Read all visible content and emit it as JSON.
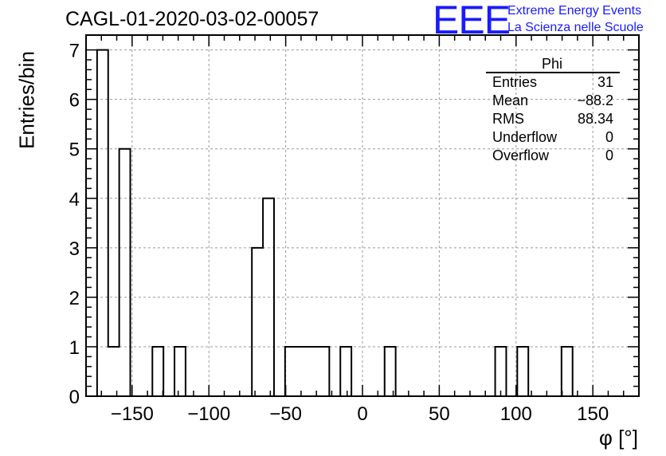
{
  "chart_data": {
    "type": "histogram",
    "title": "CAGL-01-2020-03-02-00057",
    "xlabel": "φ [°]",
    "ylabel": "Entries/bin",
    "xlim": [
      -180,
      180
    ],
    "ylim": [
      0,
      7.3
    ],
    "grid": true,
    "bin_width": 7.2,
    "x_ticks": [
      -150,
      -100,
      -50,
      0,
      50,
      100,
      150
    ],
    "x_tick_labels": [
      "−150",
      "−100",
      "−50",
      "0",
      "50",
      "100",
      "150"
    ],
    "y_ticks": [
      0,
      1,
      2,
      3,
      4,
      5,
      6,
      7
    ],
    "bins": [
      {
        "x0": -172.8,
        "x1": -165.6,
        "y": 7
      },
      {
        "x0": -165.6,
        "x1": -158.4,
        "y": 1
      },
      {
        "x0": -158.4,
        "x1": -151.2,
        "y": 5
      },
      {
        "x0": -136.8,
        "x1": -129.6,
        "y": 1
      },
      {
        "x0": -122.4,
        "x1": -115.2,
        "y": 1
      },
      {
        "x0": -72.0,
        "x1": -64.8,
        "y": 3
      },
      {
        "x0": -64.8,
        "x1": -57.6,
        "y": 4
      },
      {
        "x0": -50.4,
        "x1": -43.2,
        "y": 1
      },
      {
        "x0": -43.2,
        "x1": -36.0,
        "y": 1
      },
      {
        "x0": -36.0,
        "x1": -28.8,
        "y": 1
      },
      {
        "x0": -28.8,
        "x1": -21.6,
        "y": 1
      },
      {
        "x0": -14.4,
        "x1": -7.2,
        "y": 1
      },
      {
        "x0": 14.4,
        "x1": 21.6,
        "y": 1
      },
      {
        "x0": 86.4,
        "x1": 93.6,
        "y": 1
      },
      {
        "x0": 100.8,
        "x1": 108.0,
        "y": 1
      },
      {
        "x0": 129.6,
        "x1": 136.8,
        "y": 1
      }
    ]
  },
  "stats": {
    "title": "Phi",
    "rows": [
      {
        "name": "Entries",
        "value": "31"
      },
      {
        "name": "Mean",
        "value": "−88.2"
      },
      {
        "name": "RMS",
        "value": "88.34"
      },
      {
        "name": "Underflow",
        "value": "0"
      },
      {
        "name": "Overflow",
        "value": "0"
      }
    ]
  },
  "logo": {
    "text": "EEE",
    "line1": "Extreme Energy Events",
    "line2": "La Scienza nelle Scuole",
    "color": "#1a1aff"
  }
}
